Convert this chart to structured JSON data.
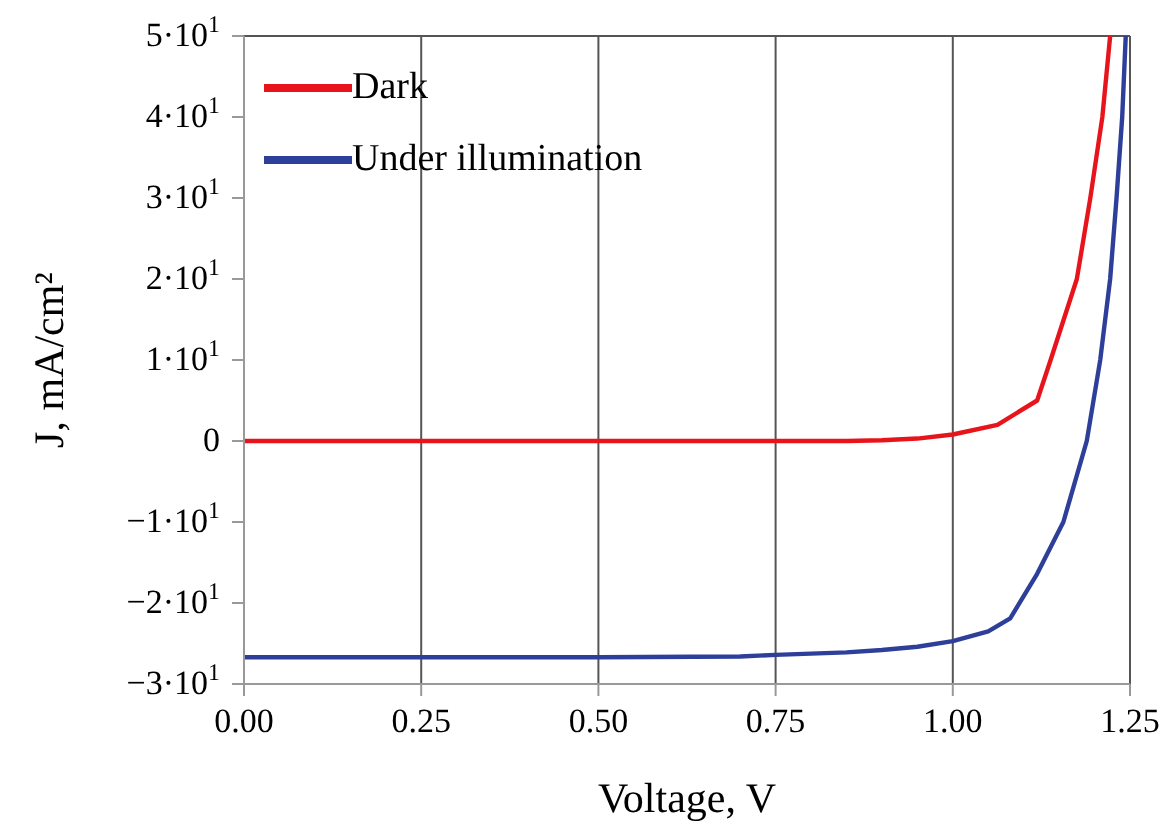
{
  "chart_data": {
    "type": "line",
    "xlabel": "Voltage, V",
    "ylabel": "J, mA/cm²",
    "legend": "top left",
    "grid": true,
    "marker": "none",
    "line_style": "solid",
    "xlim": [
      0,
      1.25
    ],
    "xticks": [
      {
        "value": 0,
        "label": "0.00"
      },
      {
        "value": 0.25,
        "label": "0.25"
      },
      {
        "value": 0.5,
        "label": "0.50"
      },
      {
        "value": 0.75,
        "label": "0.75"
      },
      {
        "value": 1,
        "label": "1.00"
      },
      {
        "value": 1.25,
        "label": "1.25"
      }
    ],
    "ylim": [
      -30,
      50
    ],
    "yticks": [
      {
        "value": -30,
        "label": "−3·10$^{1}$"
      },
      {
        "value": -20,
        "label": "−2·10$^{1}$"
      },
      {
        "value": -10,
        "label": "−1·10$^{1}$"
      },
      0,
      {
        "value": 10,
        "label": "1·10$^{1}$"
      },
      {
        "value": 20,
        "label": "2·10$^{1}$"
      },
      {
        "value": 30,
        "label": "3·10$^{1}$"
      },
      {
        "value": 40,
        "label": "4·10$^{1}$"
      },
      {
        "value": 50,
        "label": "5·10$^{1}$"
      }
    ],
    "series": [
      {
        "name": "Dark",
        "color": "#e8141c",
        "x": [
          0,
          0.5,
          0.85,
          0.9,
          0.95,
          1.0,
          1.063,
          1.119,
          1.138,
          1.175,
          1.194,
          1.211,
          1.222
        ],
        "values": [
          0,
          0,
          0,
          0.1,
          0.3,
          0.8,
          2,
          5,
          10,
          20,
          30,
          40,
          50
        ]
      },
      {
        "name": "Under illumination",
        "color": "#2e3f9a",
        "x": [
          0,
          0.5,
          0.7,
          0.75,
          0.85,
          0.9,
          0.95,
          1.0,
          1.05,
          1.081,
          1.119,
          1.156,
          1.189,
          1.208,
          1.222,
          1.231,
          1.239,
          1.244
        ],
        "values": [
          -26.7,
          -26.7,
          -26.6,
          -26.4,
          -26.1,
          -25.8,
          -25.4,
          -24.7,
          -23.5,
          -21.9,
          -16.4,
          -10,
          0,
          10,
          20,
          30,
          40,
          50
        ]
      }
    ]
  }
}
